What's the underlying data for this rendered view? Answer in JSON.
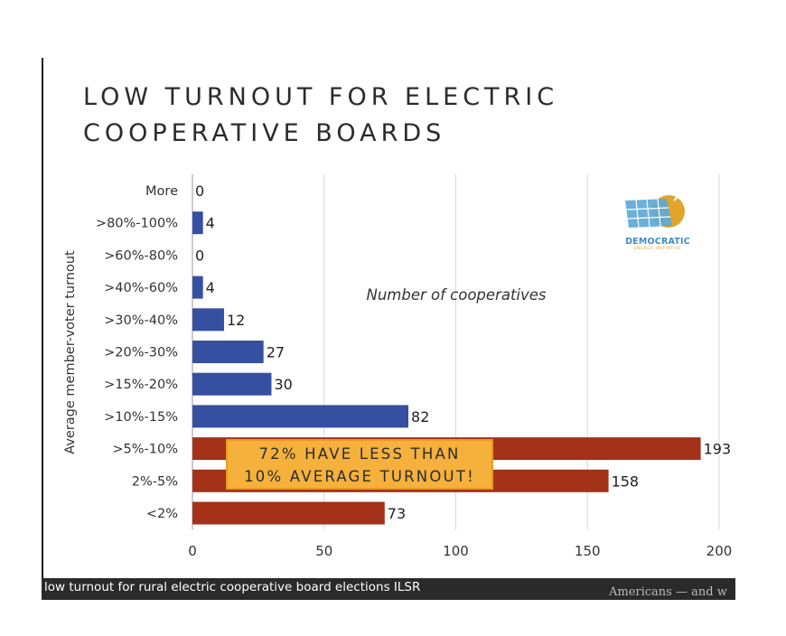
{
  "title_lines": [
    "LOW TURNOUT FOR ELECTRIC",
    "COOPERATIVE BOARDS"
  ],
  "callout_lines": [
    "72% HAVE LESS THAN",
    "10% AVERAGE TURNOUT!"
  ],
  "caption": "low turnout for rural electric cooperative board elections ILSR",
  "background_text": "Americans — and w",
  "logo": {
    "name": "DEMOCRATIC",
    "sub": "ENERGY INITIATIVE",
    "icon": "solar-panel-sun-icon"
  },
  "colors": {
    "blue": "#3550a0",
    "red": "#a33218",
    "callout": "#f5b13c",
    "grid": "#d6d6d6"
  },
  "chart_data": {
    "type": "bar",
    "orientation": "horizontal",
    "title": "LOW TURNOUT FOR ELECTRIC COOPERATIVE BOARDS",
    "xlabel": "Number of cooperatives",
    "ylabel": "Average member-voter turnout",
    "xlim": [
      0,
      200
    ],
    "xticks": [
      0,
      50,
      100,
      150,
      200
    ],
    "grid": "vertical",
    "legend": "none",
    "categories": [
      "More",
      ">80%-100%",
      ">60%-80%",
      ">40%-60%",
      ">30%-40%",
      ">20%-30%",
      ">15%-20%",
      ">10%-15%",
      ">5%-10%",
      "2%-5%",
      "<2%"
    ],
    "values": [
      0,
      4,
      0,
      4,
      12,
      27,
      30,
      82,
      193,
      158,
      73
    ],
    "bar_colors": [
      "#3550a0",
      "#3550a0",
      "#3550a0",
      "#3550a0",
      "#3550a0",
      "#3550a0",
      "#3550a0",
      "#3550a0",
      "#a33218",
      "#a33218",
      "#a33218"
    ]
  }
}
